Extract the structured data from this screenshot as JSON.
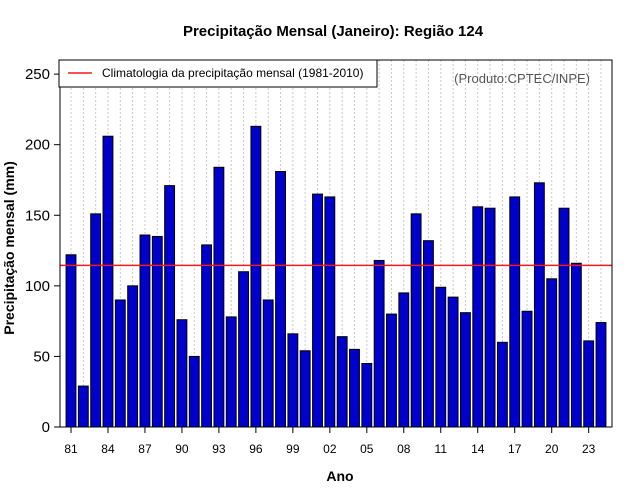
{
  "chart_data": {
    "type": "bar",
    "title": "Precipitação Mensal (Janeiro): Região 124",
    "xlabel": "Ano",
    "ylabel": "Precipitação mensal (mm)",
    "ylim": [
      0,
      260
    ],
    "yticks": [
      0,
      50,
      100,
      150,
      200,
      250
    ],
    "grid": "vertical dotted",
    "categories": [
      "81",
      "82",
      "83",
      "84",
      "85",
      "86",
      "87",
      "88",
      "89",
      "90",
      "91",
      "92",
      "93",
      "94",
      "95",
      "96",
      "97",
      "98",
      "99",
      "00",
      "01",
      "02",
      "03",
      "04",
      "05",
      "06",
      "07",
      "08",
      "09",
      "10",
      "11",
      "12",
      "13",
      "14",
      "15",
      "16",
      "17",
      "18",
      "19",
      "20",
      "21",
      "22",
      "23",
      "24"
    ],
    "x_tick_labels": [
      "81",
      "84",
      "87",
      "90",
      "93",
      "96",
      "99",
      "02",
      "05",
      "08",
      "11",
      "14",
      "17",
      "20",
      "23"
    ],
    "values": [
      122,
      29,
      151,
      206,
      90,
      100,
      136,
      135,
      171,
      76,
      50,
      129,
      184,
      78,
      110,
      213,
      90,
      181,
      66,
      54,
      165,
      163,
      64,
      55,
      45,
      118,
      80,
      95,
      151,
      132,
      99,
      92,
      81,
      156,
      155,
      60,
      163,
      82,
      173,
      105,
      155,
      116,
      61,
      74
    ],
    "climatology": {
      "value": 114.5,
      "label": "Climatologia da precipitação mensal (1981-2010)",
      "color": "#ee1c1c"
    },
    "bar_color": "#0000cc",
    "legend_position": "top-left",
    "credit": "(Produto:CPTEC/INPE)"
  }
}
